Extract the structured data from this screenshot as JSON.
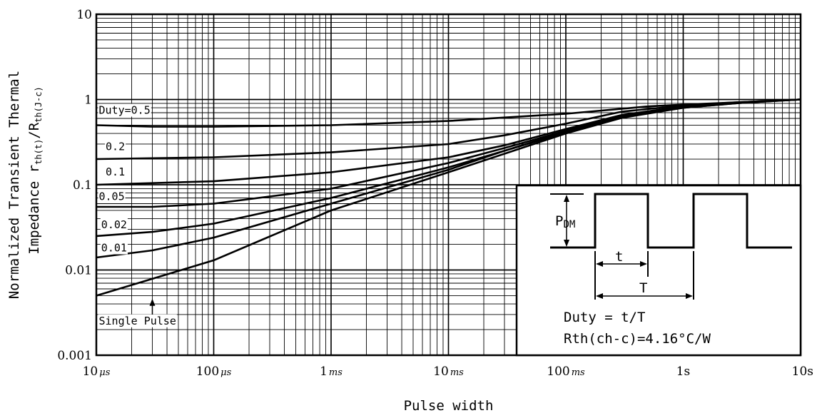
{
  "chart_data": {
    "type": "line",
    "x_scale": "log",
    "y_scale": "log",
    "xlim": [
      1e-05,
      10
    ],
    "ylim": [
      0.001,
      10
    ],
    "xlabel": "Pulse width",
    "ylabel_line1": "Normalized Transient Thermal",
    "ylabel_line2": "Impedance r",
    "ylabel_sub1": "th(t)",
    "ylabel_mid": "/R",
    "ylabel_sub2": "th(J-c)",
    "grid": true,
    "x_ticks": [
      {
        "value": 1e-05,
        "num": "10",
        "unit": "μs"
      },
      {
        "value": 0.0001,
        "num": "100",
        "unit": "μs"
      },
      {
        "value": 0.001,
        "num": "1",
        "unit": "ms"
      },
      {
        "value": 0.01,
        "num": "10",
        "unit": "ms"
      },
      {
        "value": 0.1,
        "num": "100",
        "unit": "ms"
      },
      {
        "value": 1,
        "num": "1s",
        "unit": ""
      },
      {
        "value": 10,
        "num": "10s",
        "unit": ""
      }
    ],
    "y_ticks": [
      {
        "value": 10,
        "label": "10"
      },
      {
        "value": 1,
        "label": "1"
      },
      {
        "value": 0.1,
        "label": "0.1"
      },
      {
        "value": 0.01,
        "label": "0.01"
      },
      {
        "value": 0.001,
        "label": "0.001"
      }
    ],
    "series": [
      {
        "name": "Duty=0.5",
        "x": [
          1e-05,
          3e-05,
          0.0001,
          0.001,
          0.01,
          0.1,
          0.5,
          1,
          3,
          10
        ],
        "y": [
          0.5,
          0.48,
          0.48,
          0.5,
          0.56,
          0.68,
          0.83,
          0.87,
          0.93,
          1.0
        ]
      },
      {
        "name": "0.2",
        "x": [
          1e-05,
          0.0001,
          0.001,
          0.01,
          0.03,
          0.1,
          0.3,
          1,
          3,
          10
        ],
        "y": [
          0.2,
          0.21,
          0.24,
          0.3,
          0.38,
          0.52,
          0.72,
          0.85,
          0.93,
          1.0
        ]
      },
      {
        "name": "0.1",
        "x": [
          1e-05,
          0.0001,
          0.001,
          0.01,
          0.03,
          0.1,
          0.3,
          1,
          3,
          10
        ],
        "y": [
          0.1,
          0.11,
          0.14,
          0.21,
          0.29,
          0.45,
          0.66,
          0.83,
          0.92,
          1.0
        ]
      },
      {
        "name": "0.05",
        "x": [
          1e-05,
          3e-05,
          0.0001,
          0.001,
          0.01,
          0.03,
          0.1,
          0.3,
          1,
          3,
          10
        ],
        "y": [
          0.055,
          0.055,
          0.06,
          0.09,
          0.18,
          0.27,
          0.43,
          0.64,
          0.82,
          0.92,
          1.0
        ]
      },
      {
        "name": "0.02",
        "x": [
          1e-05,
          3e-05,
          0.0001,
          0.001,
          0.01,
          0.03,
          0.1,
          0.3,
          1,
          3,
          10
        ],
        "y": [
          0.025,
          0.028,
          0.035,
          0.07,
          0.16,
          0.25,
          0.42,
          0.63,
          0.81,
          0.92,
          1.0
        ]
      },
      {
        "name": "0.01",
        "x": [
          1e-05,
          3e-05,
          0.0001,
          0.001,
          0.01,
          0.03,
          0.1,
          0.3,
          1,
          3,
          10
        ],
        "y": [
          0.014,
          0.017,
          0.024,
          0.06,
          0.15,
          0.25,
          0.41,
          0.62,
          0.8,
          0.91,
          1.0
        ]
      },
      {
        "name": "Single Pulse",
        "x": [
          1e-05,
          0.0001,
          0.001,
          0.01,
          0.1,
          0.3,
          1,
          3,
          10
        ],
        "y": [
          0.005,
          0.013,
          0.05,
          0.14,
          0.4,
          0.61,
          0.8,
          0.91,
          1.0
        ]
      }
    ],
    "labels": [
      {
        "text": "Duty=0.5",
        "x": 1.05e-05,
        "y": 0.68
      },
      {
        "text": "0.2",
        "x": 1.2e-05,
        "y": 0.255
      },
      {
        "text": "0.1",
        "x": 1.2e-05,
        "y": 0.128
      },
      {
        "text": "0.05",
        "x": 1.05e-05,
        "y": 0.066
      },
      {
        "text": "0.02",
        "x": 1.1e-05,
        "y": 0.031
      },
      {
        "text": "0.01",
        "x": 1.1e-05,
        "y": 0.0165
      },
      {
        "text": "Single Pulse",
        "x": 1.05e-05,
        "y": 0.0023
      }
    ],
    "arrow": {
      "x": 3e-05,
      "y_from": 0.003,
      "y_to": 0.0046
    },
    "inset": {
      "pdm_label": "P",
      "pdm_sub": "DM",
      "t_label": "t",
      "T_label": "T",
      "duty_text": "Duty = t/T",
      "rth_text": "Rth(ch-c)=4.16°C/W"
    }
  }
}
